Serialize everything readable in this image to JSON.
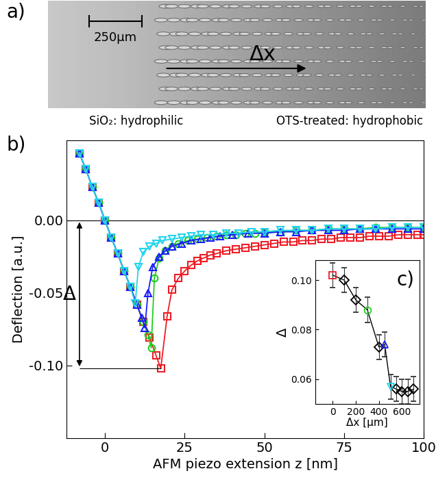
{
  "image_panel": {
    "panel_label": "a)",
    "scale_bar_label": "250µm",
    "arrow_label": "Δx",
    "left_caption": "SiO₂: hydrophilic",
    "right_caption": "OTS-treated: hydrophobic"
  },
  "chart_data": [
    {
      "type": "line",
      "panel_label": "b)",
      "x_label": "AFM piezo extension z [nm]",
      "y_label": "Deflection [a.u.]",
      "xlim": [
        -12,
        100
      ],
      "ylim": [
        -0.15,
        0.055
      ],
      "xticks": [
        0,
        25,
        50,
        75,
        100
      ],
      "yticks": [
        {
          "value": -0.1,
          "label": "-0.10"
        },
        {
          "value": -0.05,
          "label": "-0.05"
        },
        {
          "value": 0,
          "label": "0.00"
        }
      ],
      "reference_line": 0,
      "annotations": [
        {
          "text": "Δ",
          "x": -8,
          "y_from": 0,
          "y_to": -0.102
        }
      ],
      "series": [
        {
          "color": "#ee1c24",
          "marker": "square",
          "x": [
            -8,
            -6,
            -4,
            -2,
            0,
            2,
            4,
            6,
            8,
            10,
            12,
            14,
            16,
            17.5,
            19.5,
            21,
            23,
            25,
            27,
            29,
            31,
            33,
            35,
            38,
            41,
            44,
            47,
            50,
            53,
            56,
            59,
            62,
            65,
            68,
            71,
            74,
            77,
            80,
            83,
            86,
            89,
            92,
            95,
            98,
            100
          ],
          "values": [
            0.046,
            0.035,
            0.023,
            0.012,
            0.0,
            -0.012,
            -0.023,
            -0.035,
            -0.046,
            -0.058,
            -0.07,
            -0.081,
            -0.093,
            -0.102,
            -0.066,
            -0.048,
            -0.04,
            -0.035,
            -0.031,
            -0.028,
            -0.026,
            -0.024,
            -0.023,
            -0.021,
            -0.02,
            -0.019,
            -0.018,
            -0.017,
            -0.016,
            -0.015,
            -0.015,
            -0.014,
            -0.014,
            -0.013,
            -0.013,
            -0.012,
            -0.012,
            -0.012,
            -0.011,
            -0.011,
            -0.011,
            -0.01,
            -0.01,
            -0.01,
            -0.01
          ]
        },
        {
          "color": "#22cc22",
          "marker": "circle",
          "x": [
            -8,
            -6,
            -4,
            -2,
            0,
            2,
            4,
            6,
            8,
            10,
            12,
            13.5,
            14.5,
            15.5,
            17,
            19,
            21,
            23,
            26,
            29,
            32,
            35,
            38,
            41,
            44,
            47,
            50,
            55,
            60,
            65,
            70,
            75,
            80,
            85,
            90,
            95,
            100
          ],
          "values": [
            0.046,
            0.035,
            0.023,
            0.012,
            0.0,
            -0.012,
            -0.023,
            -0.035,
            -0.046,
            -0.058,
            -0.07,
            -0.079,
            -0.088,
            -0.04,
            -0.026,
            -0.021,
            -0.018,
            -0.016,
            -0.014,
            -0.013,
            -0.012,
            -0.011,
            -0.01,
            -0.01,
            -0.009,
            -0.009,
            -0.008,
            -0.008,
            -0.007,
            -0.007,
            -0.006,
            -0.006,
            -0.006,
            -0.005,
            -0.005,
            -0.005,
            -0.005
          ]
        },
        {
          "color": "#1a1aff",
          "marker": "triangle_up",
          "x": [
            -8,
            -6,
            -4,
            -2,
            0,
            2,
            4,
            6,
            8,
            10,
            11.5,
            12.5,
            13.5,
            15,
            17,
            19,
            21,
            24,
            27,
            30,
            33,
            36,
            40,
            45,
            50,
            55,
            60,
            65,
            70,
            75,
            80,
            85,
            90,
            95,
            100
          ],
          "values": [
            0.046,
            0.035,
            0.023,
            0.012,
            0.0,
            -0.012,
            -0.023,
            -0.035,
            -0.046,
            -0.058,
            -0.067,
            -0.074,
            -0.05,
            -0.032,
            -0.025,
            -0.021,
            -0.018,
            -0.016,
            -0.014,
            -0.013,
            -0.012,
            -0.011,
            -0.01,
            -0.009,
            -0.009,
            -0.008,
            -0.008,
            -0.007,
            -0.007,
            -0.007,
            -0.006,
            -0.006,
            -0.006,
            -0.006,
            -0.006
          ]
        },
        {
          "color": "#22d4ee",
          "marker": "triangle_down",
          "x": [
            -8,
            -6,
            -4,
            -2,
            0,
            2,
            4,
            6,
            8,
            9.5,
            10.5,
            12,
            14,
            16,
            18,
            21,
            24,
            27,
            30,
            34,
            38,
            42,
            46,
            50,
            55,
            60,
            65,
            70,
            75,
            80,
            85,
            90,
            95,
            100
          ],
          "values": [
            0.046,
            0.035,
            0.023,
            0.012,
            0.0,
            -0.012,
            -0.023,
            -0.035,
            -0.046,
            -0.057,
            -0.032,
            -0.022,
            -0.018,
            -0.016,
            -0.014,
            -0.013,
            -0.012,
            -0.011,
            -0.01,
            -0.01,
            -0.009,
            -0.009,
            -0.008,
            -0.008,
            -0.007,
            -0.007,
            -0.007,
            -0.006,
            -0.006,
            -0.006,
            -0.006,
            -0.005,
            -0.005,
            -0.005
          ]
        }
      ]
    },
    {
      "type": "scatter",
      "panel_label": "c)",
      "x_label": "Δx [µm]",
      "y_label": "Δ",
      "xlim": [
        -150,
        750
      ],
      "ylim": [
        0.05,
        0.108
      ],
      "xticks": [
        0,
        200,
        400,
        600
      ],
      "yticks": [
        0.06,
        0.08,
        {
          "value": 0.1,
          "label": "0.10"
        }
      ],
      "series": [
        {
          "type": "line",
          "color": "#000000",
          "marker": "none",
          "x": [
            0,
            100,
            200,
            300,
            400,
            450,
            500,
            550,
            600,
            650,
            700
          ],
          "values": [
            0.102,
            0.1,
            0.092,
            0.088,
            0.073,
            0.074,
            0.057,
            0.056,
            0.055,
            0.055,
            0.056
          ]
        },
        {
          "type": "scatter",
          "color": "#000000",
          "marker": "diamond",
          "x": [
            100,
            200,
            400,
            550,
            600,
            650,
            700
          ],
          "values": [
            0.1,
            0.092,
            0.073,
            0.056,
            0.055,
            0.055,
            0.056
          ],
          "errors": [
            0.005,
            0.005,
            0.005,
            0.005,
            0.005,
            0.005,
            0.005
          ]
        },
        {
          "type": "scatter",
          "color": "#ee1c24",
          "marker": "square",
          "x": [
            0
          ],
          "values": [
            0.102
          ],
          "errors": [
            0.005
          ]
        },
        {
          "type": "scatter",
          "color": "#22cc22",
          "marker": "circle",
          "x": [
            300
          ],
          "values": [
            0.088
          ],
          "errors": [
            0.005
          ]
        },
        {
          "type": "scatter",
          "color": "#1a1aff",
          "marker": "triangle_up",
          "x": [
            450
          ],
          "values": [
            0.074
          ],
          "errors": [
            0.005
          ]
        },
        {
          "type": "scatter",
          "color": "#22d4ee",
          "marker": "triangle_down",
          "x": [
            500
          ],
          "values": [
            0.057
          ],
          "errors": [
            0.005
          ]
        }
      ]
    }
  ]
}
